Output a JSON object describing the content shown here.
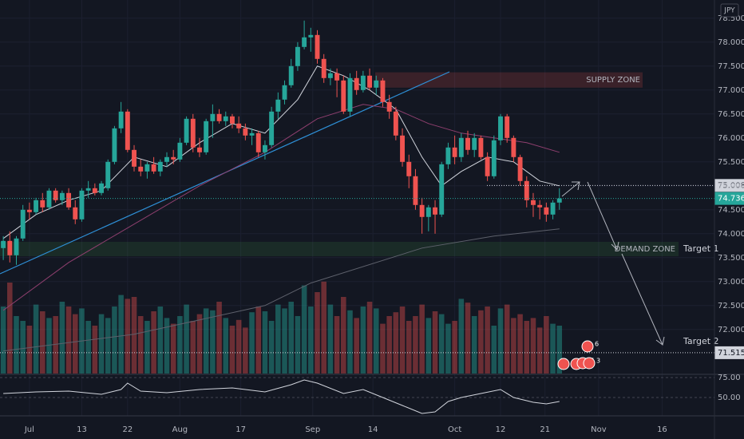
{
  "chart_data": {
    "type": "candlestick",
    "currency": "JPY",
    "xlim": [
      -0.5,
      108.7
    ],
    "ylim": [
      71.08,
      78.88
    ],
    "xticks": [
      {
        "value": 4,
        "label": "Jul"
      },
      {
        "value": 12,
        "label": "13"
      },
      {
        "value": 19,
        "label": "22"
      },
      {
        "value": 27,
        "label": "Aug"
      },
      {
        "value": 36.3,
        "label": "17"
      },
      {
        "value": 47.3,
        "label": "Sep"
      },
      {
        "value": 56.5,
        "label": "14"
      },
      {
        "value": 69,
        "label": "Oct"
      },
      {
        "value": 76,
        "label": "12"
      },
      {
        "value": 82.8,
        "label": "21"
      },
      {
        "value": 91,
        "label": "Nov"
      },
      {
        "value": 100.7,
        "label": "16"
      }
    ],
    "yticks": [
      {
        "value": 72,
        "label": "72.000"
      },
      {
        "value": 72.5,
        "label": "72.500"
      },
      {
        "value": 73,
        "label": "73.000"
      },
      {
        "value": 73.5,
        "label": "73.500"
      },
      {
        "value": 74,
        "label": "74.000"
      },
      {
        "value": 74.5,
        "label": "74.500"
      },
      {
        "value": 75,
        "label": "75.000"
      },
      {
        "value": 75.5,
        "label": "75.500"
      },
      {
        "value": 76,
        "label": "76.000"
      },
      {
        "value": 76.5,
        "label": "76.500"
      },
      {
        "value": 77,
        "label": "77.000"
      },
      {
        "value": 77.5,
        "label": "77.500"
      },
      {
        "value": 78,
        "label": "78.000"
      },
      {
        "value": 78.5,
        "label": "78.500"
      }
    ],
    "grid": true,
    "up_color": "#26a69a",
    "down_color": "#ef5350",
    "ohlc": [
      [
        73.7,
        73.95,
        73.45,
        73.85
      ],
      [
        73.85,
        74.05,
        73.4,
        73.55
      ],
      [
        73.55,
        73.95,
        73.35,
        73.9
      ],
      [
        73.9,
        74.6,
        73.85,
        74.5
      ],
      [
        74.5,
        74.65,
        74.3,
        74.45
      ],
      [
        74.45,
        74.75,
        74.4,
        74.7
      ],
      [
        74.7,
        74.85,
        74.45,
        74.55
      ],
      [
        74.55,
        74.95,
        74.5,
        74.9
      ],
      [
        74.9,
        74.95,
        74.65,
        74.7
      ],
      [
        74.7,
        74.9,
        74.6,
        74.85
      ],
      [
        74.85,
        74.95,
        74.5,
        74.55
      ],
      [
        74.55,
        74.7,
        74.2,
        74.3
      ],
      [
        74.3,
        74.95,
        74.25,
        74.9
      ],
      [
        74.9,
        75.1,
        74.75,
        74.95
      ],
      [
        74.95,
        75.05,
        74.8,
        74.85
      ],
      [
        74.85,
        75.1,
        74.8,
        75.05
      ],
      [
        74.95,
        75.55,
        74.9,
        75.5
      ],
      [
        75.5,
        76.25,
        75.45,
        76.2
      ],
      [
        76.2,
        76.75,
        76.1,
        76.55
      ],
      [
        76.55,
        76.6,
        75.7,
        75.75
      ],
      [
        75.75,
        75.85,
        75.3,
        75.4
      ],
      [
        75.4,
        75.55,
        75.2,
        75.3
      ],
      [
        75.3,
        75.5,
        75.15,
        75.45
      ],
      [
        75.45,
        75.6,
        75.25,
        75.3
      ],
      [
        75.3,
        75.55,
        75.2,
        75.5
      ],
      [
        75.5,
        75.7,
        75.4,
        75.6
      ],
      [
        75.6,
        75.75,
        75.45,
        75.55
      ],
      [
        75.55,
        76.0,
        75.5,
        75.9
      ],
      [
        75.9,
        76.45,
        75.85,
        76.4
      ],
      [
        76.4,
        76.5,
        75.7,
        75.8
      ],
      [
        75.8,
        76.0,
        75.6,
        75.7
      ],
      [
        75.7,
        76.4,
        75.65,
        76.35
      ],
      [
        76.35,
        76.7,
        76.0,
        76.5
      ],
      [
        76.5,
        76.6,
        76.3,
        76.35
      ],
      [
        76.35,
        76.55,
        76.25,
        76.45
      ],
      [
        76.45,
        76.5,
        76.2,
        76.3
      ],
      [
        76.3,
        76.45,
        76.1,
        76.2
      ],
      [
        76.2,
        76.3,
        75.95,
        76.05
      ],
      [
        76.05,
        76.2,
        75.85,
        76.1
      ],
      [
        76.1,
        76.15,
        75.6,
        75.7
      ],
      [
        75.7,
        75.95,
        75.55,
        75.85
      ],
      [
        75.85,
        76.65,
        75.8,
        76.55
      ],
      [
        76.55,
        76.95,
        76.4,
        76.8
      ],
      [
        76.8,
        77.2,
        76.7,
        77.1
      ],
      [
        77.1,
        77.65,
        77.05,
        77.5
      ],
      [
        77.5,
        78.0,
        77.4,
        77.9
      ],
      [
        77.9,
        78.45,
        77.85,
        78.1
      ],
      [
        78.1,
        78.3,
        77.8,
        78.15
      ],
      [
        78.15,
        78.25,
        77.55,
        77.65
      ],
      [
        77.65,
        77.75,
        77.15,
        77.25
      ],
      [
        77.25,
        77.45,
        77.1,
        77.35
      ],
      [
        77.35,
        77.45,
        76.85,
        77.2
      ],
      [
        77.2,
        77.3,
        76.5,
        76.55
      ],
      [
        76.55,
        77.35,
        76.45,
        77.25
      ],
      [
        77.25,
        77.4,
        76.9,
        77.0
      ],
      [
        77.0,
        77.4,
        76.95,
        77.3
      ],
      [
        77.3,
        77.45,
        77.0,
        77.05
      ],
      [
        77.05,
        77.3,
        76.9,
        77.2
      ],
      [
        77.2,
        77.25,
        76.65,
        76.75
      ],
      [
        76.75,
        76.9,
        76.4,
        76.55
      ],
      [
        76.55,
        76.65,
        75.95,
        76.05
      ],
      [
        76.05,
        76.2,
        75.4,
        75.5
      ],
      [
        75.5,
        75.65,
        74.95,
        75.2
      ],
      [
        75.2,
        75.35,
        74.5,
        74.6
      ],
      [
        74.6,
        74.75,
        74.0,
        74.35
      ],
      [
        74.35,
        74.6,
        74.05,
        74.55
      ],
      [
        74.55,
        74.7,
        74.0,
        74.4
      ],
      [
        74.4,
        75.5,
        74.35,
        75.45
      ],
      [
        75.45,
        75.9,
        75.35,
        75.8
      ],
      [
        75.8,
        76.05,
        75.45,
        75.6
      ],
      [
        75.6,
        76.1,
        75.5,
        76.0
      ],
      [
        76.0,
        76.15,
        75.65,
        75.75
      ],
      [
        75.75,
        76.1,
        75.6,
        76.0
      ],
      [
        76.0,
        76.05,
        75.55,
        75.6
      ],
      [
        75.6,
        75.7,
        75.1,
        75.2
      ],
      [
        75.2,
        76.05,
        75.15,
        75.95
      ],
      [
        75.95,
        76.5,
        75.85,
        76.45
      ],
      [
        76.45,
        76.5,
        75.9,
        76.0
      ],
      [
        76.0,
        76.05,
        75.5,
        75.6
      ],
      [
        75.6,
        75.65,
        75.0,
        75.1
      ],
      [
        75.1,
        75.2,
        74.55,
        74.7
      ],
      [
        74.7,
        74.85,
        74.35,
        74.6
      ],
      [
        74.6,
        74.7,
        74.3,
        74.55
      ],
      [
        74.55,
        74.65,
        74.25,
        74.4
      ],
      [
        74.4,
        74.7,
        74.3,
        74.65
      ],
      [
        74.65,
        74.95,
        74.5,
        74.736
      ]
    ],
    "volume": {
      "vlim": [
        0,
        100
      ],
      "values": [
        70,
        95,
        60,
        55,
        50,
        72,
        65,
        58,
        60,
        75,
        70,
        62,
        68,
        55,
        50,
        62,
        58,
        70,
        82,
        78,
        80,
        60,
        55,
        65,
        70,
        58,
        52,
        60,
        72,
        55,
        62,
        68,
        66,
        75,
        58,
        50,
        56,
        48,
        64,
        70,
        65,
        55,
        72,
        68,
        75,
        60,
        92,
        70,
        85,
        96,
        72,
        60,
        80,
        66,
        58,
        70,
        75,
        68,
        52,
        60,
        64,
        70,
        55,
        60,
        72,
        58,
        65,
        62,
        52,
        55,
        78,
        74,
        60,
        66,
        70,
        50,
        68,
        72,
        58,
        62,
        55,
        58,
        48,
        60,
        52,
        50
      ]
    },
    "lines": [
      {
        "color": "#d1d4dc",
        "x": [
          0,
          5,
          10,
          15,
          20,
          25,
          30,
          35,
          40,
          45,
          48,
          52,
          56,
          60,
          64,
          67,
          70,
          74,
          78,
          82,
          85
        ],
        "values": [
          73.9,
          74.4,
          74.7,
          74.9,
          75.6,
          75.4,
          75.9,
          76.3,
          76.1,
          76.8,
          77.5,
          77.3,
          77.0,
          76.6,
          75.6,
          75.0,
          75.3,
          75.6,
          75.5,
          75.1,
          75.0
        ]
      },
      {
        "color": "#8e3f6e",
        "x": [
          0,
          10,
          20,
          30,
          40,
          48,
          55,
          60,
          65,
          70,
          75,
          80,
          85
        ],
        "values": [
          72.4,
          73.4,
          74.2,
          75.0,
          75.7,
          76.4,
          76.7,
          76.6,
          76.3,
          76.1,
          76.0,
          75.9,
          75.7
        ]
      },
      {
        "color": "#5d606b",
        "x": [
          0,
          20,
          40,
          47,
          64,
          75,
          85
        ],
        "values": [
          71.55,
          71.9,
          72.5,
          72.97,
          73.7,
          73.95,
          74.1
        ]
      }
    ],
    "last_price": 74.736,
    "levels": [
      75.008,
      71.515
    ],
    "zones": [
      {
        "label": "SUPPLY ZONE",
        "range": [
          77.05,
          77.37
        ]
      },
      {
        "label": "DEMAND ZONE",
        "range": [
          73.53,
          73.83
        ]
      }
    ],
    "targets": [
      "Target 1",
      "Target 2"
    ],
    "oscillator": {
      "ylim": [
        28,
        78
      ],
      "yticks": [
        {
          "value": 75,
          "label": "75.00"
        },
        {
          "value": 50,
          "label": "50.00"
        }
      ],
      "x": [
        0,
        5,
        10,
        15,
        18,
        19,
        21,
        25,
        30,
        35,
        40,
        44,
        46,
        48,
        52,
        55,
        58,
        61,
        64,
        66,
        68,
        70,
        73,
        76,
        78,
        81,
        83,
        85
      ],
      "values": [
        55,
        57,
        58,
        54,
        60,
        68,
        58,
        56,
        60,
        62,
        57,
        66,
        72,
        68,
        55,
        60,
        50,
        40,
        30,
        32,
        45,
        50,
        55,
        60,
        50,
        44,
        42,
        45
      ]
    },
    "badges": [
      "6",
      "7",
      "3"
    ]
  }
}
